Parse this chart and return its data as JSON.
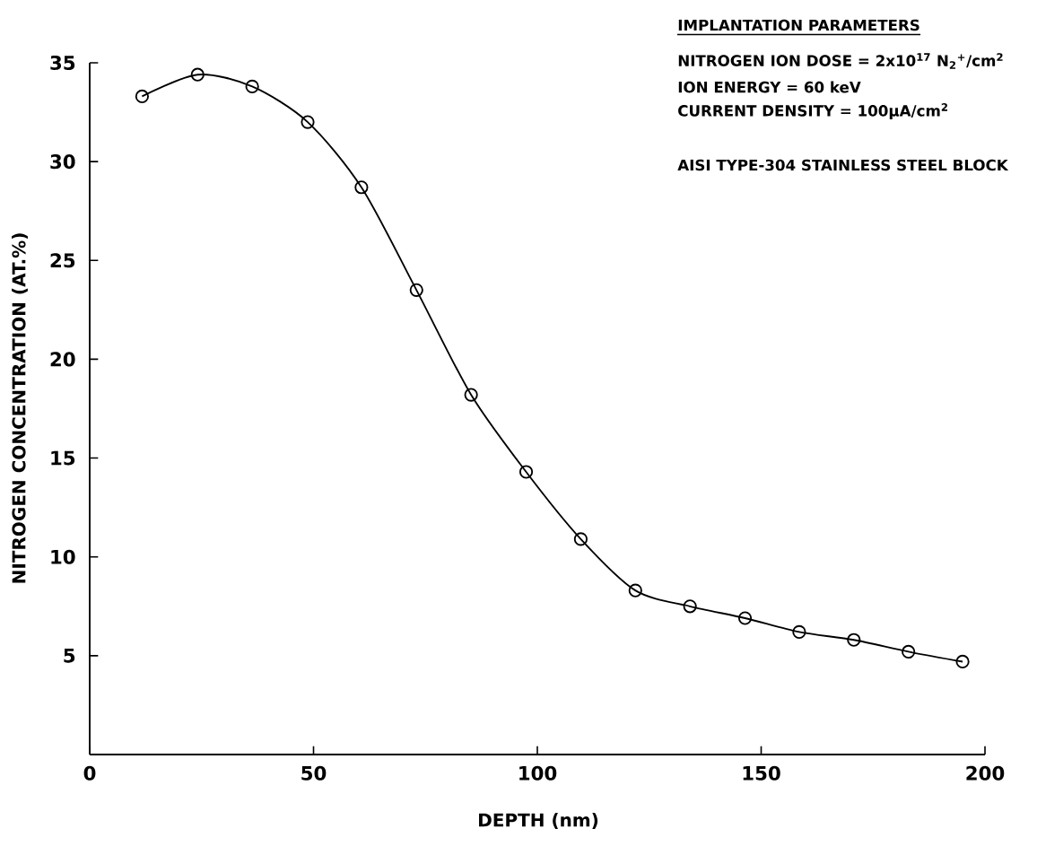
{
  "chart_data": {
    "type": "line",
    "xlabel": "DEPTH (nm)",
    "ylabel": "NITROGEN CONCENTRATION (AT.%)",
    "annotations": [
      "IMPLANTATION PARAMETERS",
      "NITROGEN ION DOSE = 2x10$^{17}$ N$_{2}$$^{+}$/cm$^{2}$",
      "ION ENERGY = 60 keV",
      "CURRENT DENSITY = 100μA/cm$^{2}$",
      "AISI TYPE-304 STAINLESS STEEL BLOCK"
    ],
    "x": [
      11.7,
      24.1,
      36.3,
      48.7,
      60.7,
      73.0,
      85.2,
      97.5,
      109.7,
      121.9,
      134.1,
      146.4,
      158.5,
      170.7,
      182.9,
      195.0
    ],
    "series": [
      {
        "color": "#000000",
        "values": [
          33.3,
          34.4,
          33.8,
          32.0,
          28.7,
          23.5,
          18.2,
          14.3,
          10.9,
          8.3,
          7.5,
          6.9,
          6.2,
          5.8,
          5.2,
          4.7
        ]
      }
    ],
    "xlim": [
      0,
      200
    ],
    "ylim": [
      0,
      35
    ],
    "xticks": [
      0,
      50,
      100,
      150,
      200
    ],
    "yticks": [
      5,
      10,
      15,
      20,
      25,
      30,
      35
    ],
    "marker": "circle",
    "line_style": "solid"
  }
}
